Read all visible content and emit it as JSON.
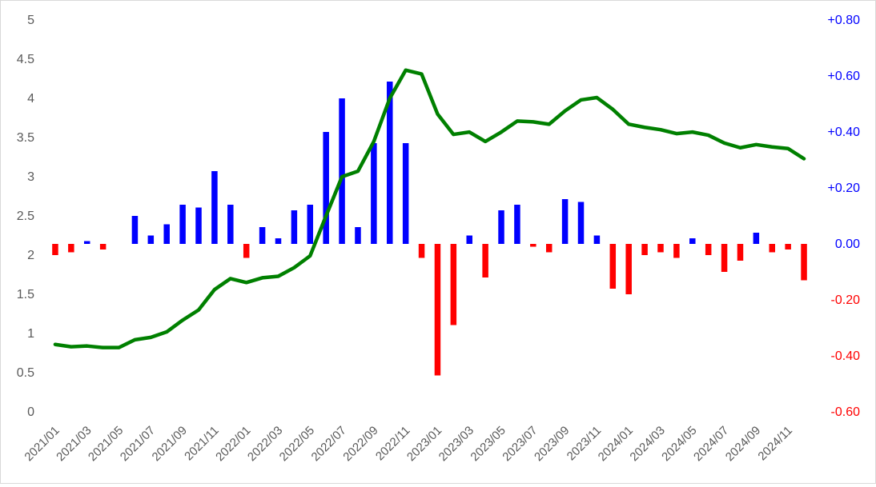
{
  "chart_data": {
    "type": "bar+line",
    "x": [
      "2021/01",
      "2021/02",
      "2021/03",
      "2021/04",
      "2021/05",
      "2021/06",
      "2021/07",
      "2021/08",
      "2021/09",
      "2021/10",
      "2021/11",
      "2021/12",
      "2022/01",
      "2022/02",
      "2022/03",
      "2022/04",
      "2022/05",
      "2022/06",
      "2022/07",
      "2022/08",
      "2022/09",
      "2022/10",
      "2022/11",
      "2022/12",
      "2023/01",
      "2023/02",
      "2023/03",
      "2023/04",
      "2023/05",
      "2023/06",
      "2023/07",
      "2023/08",
      "2023/09",
      "2023/10",
      "2023/11",
      "2023/12",
      "2024/01",
      "2024/02",
      "2024/03",
      "2024/04",
      "2024/05",
      "2024/06",
      "2024/07",
      "2024/08",
      "2024/09",
      "2024/10",
      "2024/11",
      "2024/12"
    ],
    "x_tick_labels": [
      "2021/01",
      "2021/03",
      "2021/05",
      "2021/07",
      "2021/09",
      "2021/11",
      "2022/01",
      "2022/03",
      "2022/05",
      "2022/07",
      "2022/09",
      "2022/11",
      "2023/01",
      "2023/03",
      "2023/05",
      "2023/07",
      "2023/09",
      "2023/11",
      "2024/01",
      "2024/03",
      "2024/05",
      "2024/07",
      "2024/09",
      "2024/11"
    ],
    "line_series": {
      "axis": "left",
      "color": "#008000",
      "values": [
        0.86,
        0.83,
        0.84,
        0.82,
        0.82,
        0.92,
        0.95,
        1.02,
        1.17,
        1.3,
        1.56,
        1.7,
        1.65,
        1.71,
        1.73,
        1.84,
        1.99,
        2.5,
        3.0,
        3.07,
        3.45,
        4.0,
        4.36,
        4.31,
        3.8,
        3.54,
        3.57,
        3.45,
        3.57,
        3.71,
        3.7,
        3.67,
        3.84,
        3.98,
        4.01,
        3.86,
        3.67,
        3.63,
        3.6,
        3.55,
        3.57,
        3.53,
        3.43,
        3.37,
        3.41,
        3.38,
        3.36,
        3.23
      ]
    },
    "bar_series": {
      "axis": "right",
      "positive_color": "#0000ff",
      "negative_color": "#ff0000",
      "values": [
        -0.04,
        -0.03,
        0.01,
        -0.02,
        0.0,
        0.1,
        0.03,
        0.07,
        0.14,
        0.13,
        0.26,
        0.14,
        -0.05,
        0.06,
        0.02,
        0.12,
        0.14,
        0.4,
        0.52,
        0.06,
        0.36,
        0.58,
        0.36,
        -0.05,
        -0.47,
        -0.29,
        0.03,
        -0.12,
        0.12,
        0.14,
        -0.01,
        -0.03,
        0.16,
        0.15,
        0.03,
        -0.16,
        -0.18,
        -0.04,
        -0.03,
        -0.05,
        0.02,
        -0.04,
        -0.1,
        -0.06,
        0.04,
        -0.03,
        -0.02,
        -0.13
      ]
    },
    "left_axis": {
      "ylim": [
        0,
        5
      ],
      "ticks": [
        0,
        0.5,
        1,
        1.5,
        2,
        2.5,
        3,
        3.5,
        4,
        4.5,
        5
      ],
      "tick_labels": [
        "0",
        "0.5",
        "1",
        "1.5",
        "2",
        "2.5",
        "3",
        "3.5",
        "4",
        "4.5",
        "5"
      ]
    },
    "right_axis": {
      "ylim": [
        -0.6,
        0.8
      ],
      "ticks": [
        -0.6,
        -0.4,
        -0.2,
        0.0,
        0.2,
        0.4,
        0.6,
        0.8
      ],
      "tick_labels": [
        "-0.60",
        "-0.40",
        "-0.20",
        "0.00",
        "+0.20",
        "+0.40",
        "+0.60",
        "+0.80"
      ],
      "positive_label_color": "#0000ff",
      "negative_label_color": "#ff0000"
    },
    "grid": false,
    "legend": "none"
  }
}
